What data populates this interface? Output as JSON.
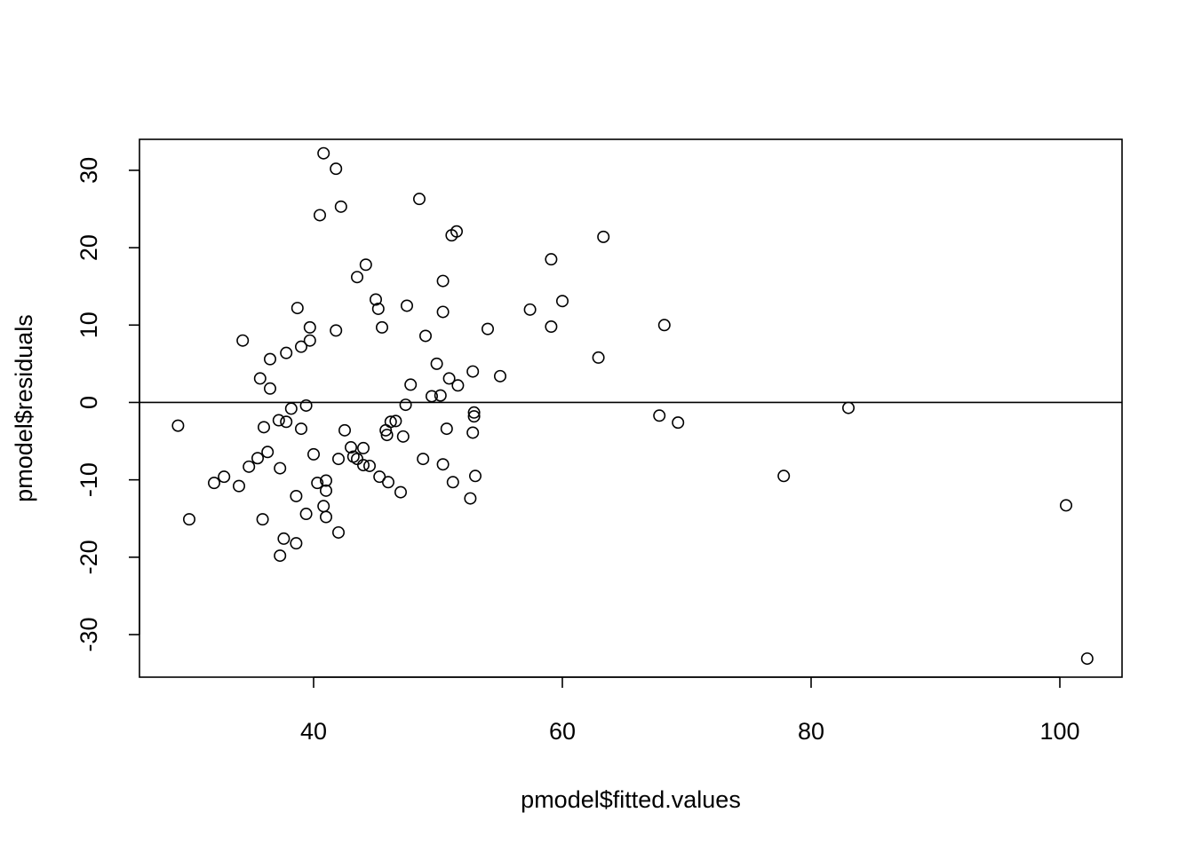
{
  "chart_data": {
    "type": "scatter",
    "title": "",
    "xlabel": "pmodel$fitted.values",
    "ylabel": "pmodel$residuals",
    "xlim": [
      26,
      105
    ],
    "ylim": [
      -35.5,
      34
    ],
    "x_ticks": [
      40,
      60,
      80,
      100
    ],
    "y_ticks": [
      -30,
      -20,
      -10,
      0,
      10,
      20,
      30
    ],
    "x_tick_labels": [
      "40",
      "60",
      "80",
      "100"
    ],
    "y_tick_labels": [
      "-30",
      "-20",
      "-10",
      "0",
      "10",
      "20",
      "30"
    ],
    "reference_line": {
      "y": 0
    },
    "grid": false,
    "legend": "none",
    "marker": "open-circle",
    "color": "#000000",
    "points": [
      [
        29.1,
        -3.0
      ],
      [
        30.0,
        -15.1
      ],
      [
        32.0,
        -10.4
      ],
      [
        32.8,
        -9.6
      ],
      [
        34.0,
        -10.8
      ],
      [
        34.3,
        8.0
      ],
      [
        34.8,
        -8.3
      ],
      [
        35.5,
        -7.2
      ],
      [
        35.7,
        3.1
      ],
      [
        35.9,
        -15.1
      ],
      [
        36.0,
        -3.2
      ],
      [
        36.3,
        -6.4
      ],
      [
        36.5,
        5.6
      ],
      [
        36.5,
        1.8
      ],
      [
        37.2,
        -2.3
      ],
      [
        37.3,
        -8.5
      ],
      [
        37.3,
        -19.8
      ],
      [
        37.6,
        -17.6
      ],
      [
        37.8,
        -2.5
      ],
      [
        37.8,
        6.4
      ],
      [
        38.2,
        -0.8
      ],
      [
        38.6,
        -18.2
      ],
      [
        38.6,
        -12.1
      ],
      [
        38.7,
        12.2
      ],
      [
        39.0,
        7.2
      ],
      [
        39.0,
        -3.4
      ],
      [
        39.4,
        -14.4
      ],
      [
        39.4,
        -0.4
      ],
      [
        39.7,
        9.7
      ],
      [
        39.7,
        8.0
      ],
      [
        40.0,
        -6.7
      ],
      [
        40.3,
        -10.4
      ],
      [
        40.5,
        24.2
      ],
      [
        40.8,
        32.2
      ],
      [
        40.8,
        -13.4
      ],
      [
        41.0,
        -11.4
      ],
      [
        41.0,
        -14.8
      ],
      [
        41.0,
        -10.1
      ],
      [
        41.8,
        30.2
      ],
      [
        41.8,
        9.3
      ],
      [
        42.0,
        -7.3
      ],
      [
        42.0,
        -16.8
      ],
      [
        42.2,
        25.3
      ],
      [
        42.5,
        -3.6
      ],
      [
        43.0,
        -5.8
      ],
      [
        43.2,
        -7.0
      ],
      [
        43.5,
        -7.3
      ],
      [
        43.5,
        16.2
      ],
      [
        44.0,
        -5.9
      ],
      [
        44.0,
        -8.1
      ],
      [
        44.2,
        17.8
      ],
      [
        44.5,
        -8.2
      ],
      [
        45.0,
        13.3
      ],
      [
        45.2,
        12.1
      ],
      [
        45.3,
        -9.6
      ],
      [
        45.5,
        9.7
      ],
      [
        45.8,
        -3.6
      ],
      [
        45.9,
        -4.2
      ],
      [
        46.0,
        -10.3
      ],
      [
        46.2,
        -2.5
      ],
      [
        46.6,
        -2.4
      ],
      [
        47.0,
        -11.6
      ],
      [
        47.2,
        -4.4
      ],
      [
        47.4,
        -0.3
      ],
      [
        47.5,
        12.5
      ],
      [
        47.8,
        2.3
      ],
      [
        48.5,
        26.3
      ],
      [
        48.8,
        -7.3
      ],
      [
        49.0,
        8.6
      ],
      [
        49.5,
        0.8
      ],
      [
        49.9,
        5.0
      ],
      [
        50.2,
        0.9
      ],
      [
        50.4,
        15.7
      ],
      [
        50.4,
        11.7
      ],
      [
        50.4,
        -8.0
      ],
      [
        50.7,
        -3.4
      ],
      [
        50.9,
        3.1
      ],
      [
        51.1,
        21.6
      ],
      [
        51.2,
        -10.3
      ],
      [
        51.5,
        22.1
      ],
      [
        51.6,
        2.2
      ],
      [
        52.6,
        -12.4
      ],
      [
        52.8,
        4.0
      ],
      [
        52.8,
        -3.9
      ],
      [
        52.9,
        -1.3
      ],
      [
        52.9,
        -1.8
      ],
      [
        53.0,
        -9.5
      ],
      [
        54.0,
        9.5
      ],
      [
        55.0,
        3.4
      ],
      [
        57.4,
        12.0
      ],
      [
        59.1,
        18.5
      ],
      [
        59.1,
        9.8
      ],
      [
        60.0,
        13.1
      ],
      [
        62.9,
        5.8
      ],
      [
        63.3,
        21.4
      ],
      [
        67.8,
        -1.7
      ],
      [
        68.2,
        10.0
      ],
      [
        69.3,
        -2.6
      ],
      [
        77.8,
        -9.5
      ],
      [
        83.0,
        -0.7
      ],
      [
        100.5,
        -13.3
      ],
      [
        102.2,
        -33.1
      ]
    ]
  }
}
